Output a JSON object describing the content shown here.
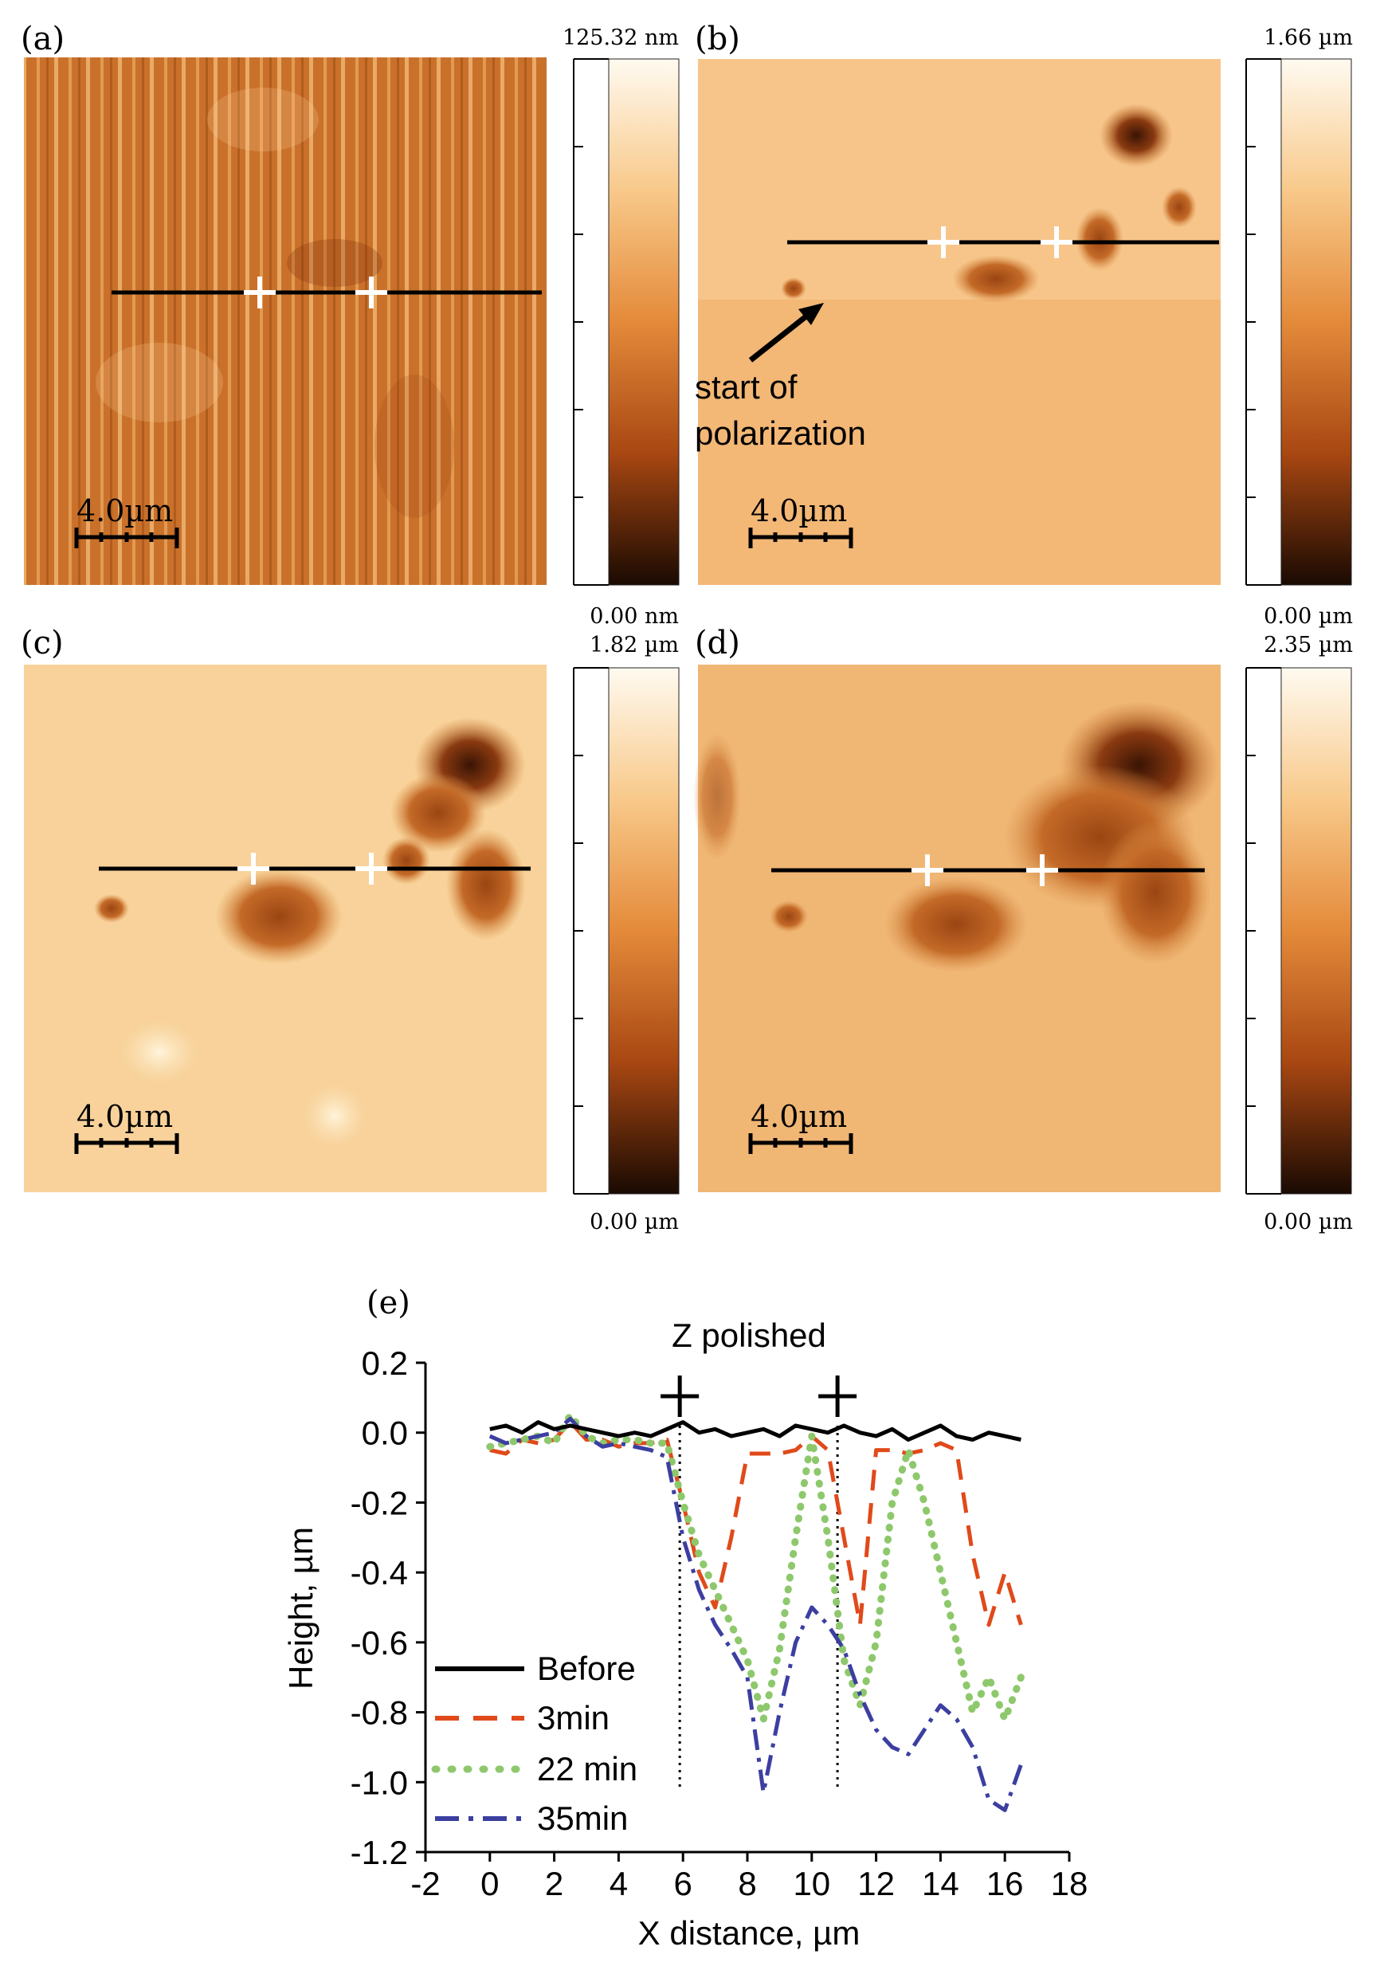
{
  "panels": [
    {
      "label": "(a)",
      "cbar_top": "125.32 nm",
      "cbar_bottom": "0.00 nm",
      "scale_label": "4.0µm"
    },
    {
      "label": "(b)",
      "cbar_top": "1.66 µm",
      "cbar_bottom": "0.00 µm",
      "scale_label": "4.0µm",
      "annotation_line1": "start of",
      "annotation_line2": "polarization"
    },
    {
      "label": "(c)",
      "cbar_top": "1.82 µm",
      "cbar_bottom": "0.00 µm",
      "scale_label": "4.0µm"
    },
    {
      "label": "(d)",
      "cbar_top": "2.35 µm",
      "cbar_bottom": "0.00 µm",
      "scale_label": "4.0µm"
    }
  ],
  "chart_label": "(e)",
  "chart_data": {
    "type": "line",
    "title": "Z polished",
    "xlabel": "X distance, µm",
    "ylabel": "Height, µm",
    "xlim": [
      -2,
      18
    ],
    "ylim": [
      -1.2,
      0.2
    ],
    "xticks": [
      -2,
      0,
      2,
      4,
      6,
      8,
      10,
      12,
      14,
      16,
      18
    ],
    "yticks": [
      0.2,
      0.0,
      -0.2,
      -0.4,
      -0.6,
      -0.8,
      -1.0,
      -1.2
    ],
    "xtick_labels": [
      "-2",
      "0",
      "2",
      "4",
      "6",
      "8",
      "10",
      "12",
      "14",
      "16",
      "18"
    ],
    "ytick_labels": [
      "0.2",
      "0.0",
      "-0.2",
      "-0.4",
      "-0.6",
      "-0.8",
      "-1.0",
      "-1.2"
    ],
    "markers": [
      {
        "x": 5.9,
        "symbol": "+"
      },
      {
        "x": 10.8,
        "symbol": "+"
      }
    ],
    "series": [
      {
        "name": "Before",
        "color": "#000000",
        "dash": "solid",
        "x": [
          0,
          0.5,
          1,
          1.5,
          2,
          2.5,
          3,
          3.5,
          4,
          4.5,
          5,
          5.5,
          6,
          6.5,
          7,
          7.5,
          8,
          8.5,
          9,
          9.5,
          10,
          10.5,
          11,
          11.5,
          12,
          12.5,
          13,
          13.5,
          14,
          14.5,
          15,
          15.5,
          16,
          16.5
        ],
        "y": [
          0.01,
          0.02,
          0.0,
          0.03,
          0.01,
          0.02,
          0.01,
          0.0,
          -0.01,
          0.0,
          -0.01,
          0.01,
          0.03,
          0.0,
          0.01,
          -0.01,
          0.0,
          0.01,
          -0.01,
          0.02,
          0.01,
          0.0,
          0.02,
          0.0,
          -0.01,
          0.01,
          -0.02,
          0.0,
          0.02,
          -0.01,
          -0.02,
          0.0,
          -0.01,
          -0.02
        ]
      },
      {
        "name": "3min",
        "color": "#e04a1a",
        "dash": "long-dash",
        "x": [
          0,
          0.5,
          1,
          1.5,
          2,
          2.5,
          3,
          3.5,
          4,
          4.5,
          5,
          5.5,
          6,
          6.5,
          7,
          7.5,
          8,
          8.5,
          9,
          9.5,
          10,
          10.5,
          11,
          11.5,
          12,
          12.5,
          13,
          13.5,
          14,
          14.5,
          15,
          15.5,
          16,
          16.5
        ],
        "y": [
          -0.05,
          -0.06,
          -0.02,
          -0.03,
          -0.02,
          0.03,
          -0.02,
          -0.02,
          -0.04,
          -0.03,
          -0.03,
          -0.02,
          -0.2,
          -0.4,
          -0.5,
          -0.3,
          -0.06,
          -0.06,
          -0.06,
          -0.05,
          -0.01,
          -0.05,
          -0.3,
          -0.55,
          -0.05,
          -0.05,
          -0.06,
          -0.05,
          -0.03,
          -0.05,
          -0.35,
          -0.55,
          -0.4,
          -0.55
        ]
      },
      {
        "name": "22 min",
        "color": "#8ec86c",
        "dash": "dotted",
        "x": [
          0,
          0.5,
          1,
          1.5,
          2,
          2.5,
          3,
          3.5,
          4,
          4.5,
          5,
          5.5,
          6,
          6.5,
          7,
          7.5,
          8,
          8.5,
          9,
          9.5,
          10,
          10.5,
          11,
          11.5,
          12,
          12.5,
          13,
          13.5,
          14,
          14.5,
          15,
          15.5,
          16,
          16.5
        ],
        "y": [
          -0.04,
          -0.03,
          -0.02,
          -0.01,
          -0.03,
          0.05,
          -0.01,
          -0.03,
          -0.02,
          -0.02,
          -0.03,
          -0.03,
          -0.2,
          -0.35,
          -0.45,
          -0.55,
          -0.65,
          -0.82,
          -0.62,
          -0.3,
          -0.01,
          -0.3,
          -0.65,
          -0.78,
          -0.6,
          -0.2,
          -0.05,
          -0.2,
          -0.4,
          -0.6,
          -0.8,
          -0.7,
          -0.82,
          -0.7
        ]
      },
      {
        "name": "35min",
        "color": "#3c3fa0",
        "dash": "dash-dot",
        "x": [
          0,
          0.5,
          1,
          1.5,
          2,
          2.5,
          3,
          3.5,
          4,
          4.5,
          5,
          5.5,
          6,
          6.5,
          7,
          7.5,
          8,
          8.5,
          9,
          9.5,
          10,
          10.5,
          11,
          11.5,
          12,
          12.5,
          13,
          13.5,
          14,
          14.5,
          15,
          15.5,
          16,
          16.5
        ],
        "y": [
          -0.01,
          -0.03,
          -0.02,
          -0.01,
          0.0,
          0.04,
          -0.01,
          -0.04,
          -0.03,
          -0.04,
          -0.05,
          -0.07,
          -0.3,
          -0.45,
          -0.55,
          -0.62,
          -0.7,
          -1.03,
          -0.8,
          -0.6,
          -0.5,
          -0.55,
          -0.62,
          -0.75,
          -0.85,
          -0.9,
          -0.92,
          -0.85,
          -0.78,
          -0.82,
          -0.9,
          -1.05,
          -1.08,
          -0.95
        ]
      }
    ]
  }
}
